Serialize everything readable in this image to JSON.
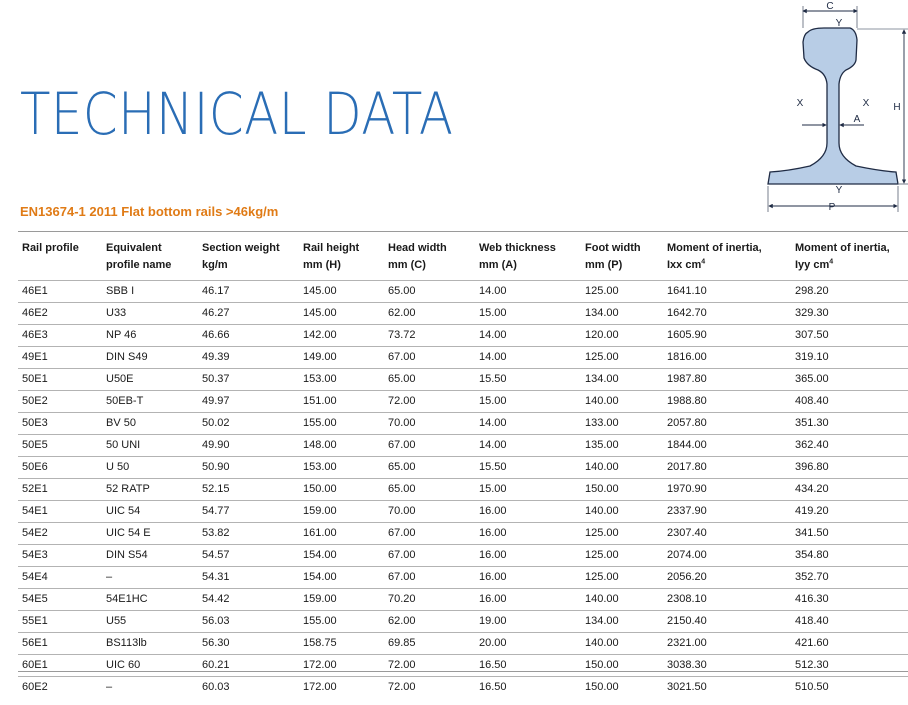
{
  "title": "TECHNICAL DATA",
  "subtitle": "EN13674-1 2011 Flat bottom rails >46kg/m",
  "diagram": {
    "label_c": "C",
    "label_y": "Y",
    "label_x": "X",
    "label_h": "H",
    "label_a": "A",
    "label_p": "P",
    "fill": "#b8cde6",
    "stroke": "#1f2b44"
  },
  "colors": {
    "title": "#2a6db5",
    "subtitle": "#e07b16"
  },
  "table": {
    "headers": [
      {
        "l1": "Rail profile",
        "l2": ""
      },
      {
        "l1": "Equivalent",
        "l2": "profile name"
      },
      {
        "l1": "Section weight",
        "l2": "kg/m"
      },
      {
        "l1": "Rail height",
        "l2": "mm (H)"
      },
      {
        "l1": "Head width",
        "l2": "mm (C)"
      },
      {
        "l1": "Web thickness",
        "l2": "mm (A)"
      },
      {
        "l1": "Foot width",
        "l2": "mm (P)"
      },
      {
        "l1": "Moment of inertia,",
        "l2": "Ixx cm",
        "sup": "4"
      },
      {
        "l1": "Moment of inertia,",
        "l2": "Iyy cm",
        "sup": "4"
      }
    ],
    "rows": [
      [
        "46E1",
        "SBB I",
        "46.17",
        "145.00",
        "65.00",
        "14.00",
        "125.00",
        "1641.10",
        "298.20"
      ],
      [
        "46E2",
        "U33",
        "46.27",
        "145.00",
        "62.00",
        "15.00",
        "134.00",
        "1642.70",
        "329.30"
      ],
      [
        "46E3",
        "NP 46",
        "46.66",
        "142.00",
        "73.72",
        "14.00",
        "120.00",
        "1605.90",
        "307.50"
      ],
      [
        "49E1",
        "DIN S49",
        "49.39",
        "149.00",
        "67.00",
        "14.00",
        "125.00",
        "1816.00",
        "319.10"
      ],
      [
        "50E1",
        "U50E",
        "50.37",
        "153.00",
        "65.00",
        "15.50",
        "134.00",
        "1987.80",
        "365.00"
      ],
      [
        "50E2",
        "50EB-T",
        "49.97",
        "151.00",
        "72.00",
        "15.00",
        "140.00",
        "1988.80",
        "408.40"
      ],
      [
        "50E3",
        "BV 50",
        "50.02",
        "155.00",
        "70.00",
        "14.00",
        "133.00",
        "2057.80",
        "351.30"
      ],
      [
        "50E5",
        "50 UNI",
        "49.90",
        "148.00",
        "67.00",
        "14.00",
        "135.00",
        "1844.00",
        "362.40"
      ],
      [
        "50E6",
        "U 50",
        "50.90",
        "153.00",
        "65.00",
        "15.50",
        "140.00",
        "2017.80",
        "396.80"
      ],
      [
        "52E1",
        "52 RATP",
        "52.15",
        "150.00",
        "65.00",
        "15.00",
        "150.00",
        "1970.90",
        "434.20"
      ],
      [
        "54E1",
        "UIC 54",
        "54.77",
        "159.00",
        "70.00",
        "16.00",
        "140.00",
        "2337.90",
        "419.20"
      ],
      [
        "54E2",
        "UIC 54 E",
        "53.82",
        "161.00",
        "67.00",
        "16.00",
        "125.00",
        "2307.40",
        "341.50"
      ],
      [
        "54E3",
        "DIN S54",
        "54.57",
        "154.00",
        "67.00",
        "16.00",
        "125.00",
        "2074.00",
        "354.80"
      ],
      [
        "54E4",
        "–",
        "54.31",
        "154.00",
        "67.00",
        "16.00",
        "125.00",
        "2056.20",
        "352.70"
      ],
      [
        "54E5",
        "54E1HC",
        "54.42",
        "159.00",
        "70.20",
        "16.00",
        "140.00",
        "2308.10",
        "416.30"
      ],
      [
        "55E1",
        "U55",
        "56.03",
        "155.00",
        "62.00",
        "19.00",
        "134.00",
        "2150.40",
        "418.40"
      ],
      [
        "56E1",
        "BS113lb",
        "56.30",
        "158.75",
        "69.85",
        "20.00",
        "140.00",
        "2321.00",
        "421.60"
      ],
      [
        "60E1",
        "UIC 60",
        "60.21",
        "172.00",
        "72.00",
        "16.50",
        "150.00",
        "3038.30",
        "512.30"
      ],
      [
        "60E2",
        "–",
        "60.03",
        "172.00",
        "72.00",
        "16.50",
        "150.00",
        "3021.50",
        "510.50"
      ]
    ]
  }
}
